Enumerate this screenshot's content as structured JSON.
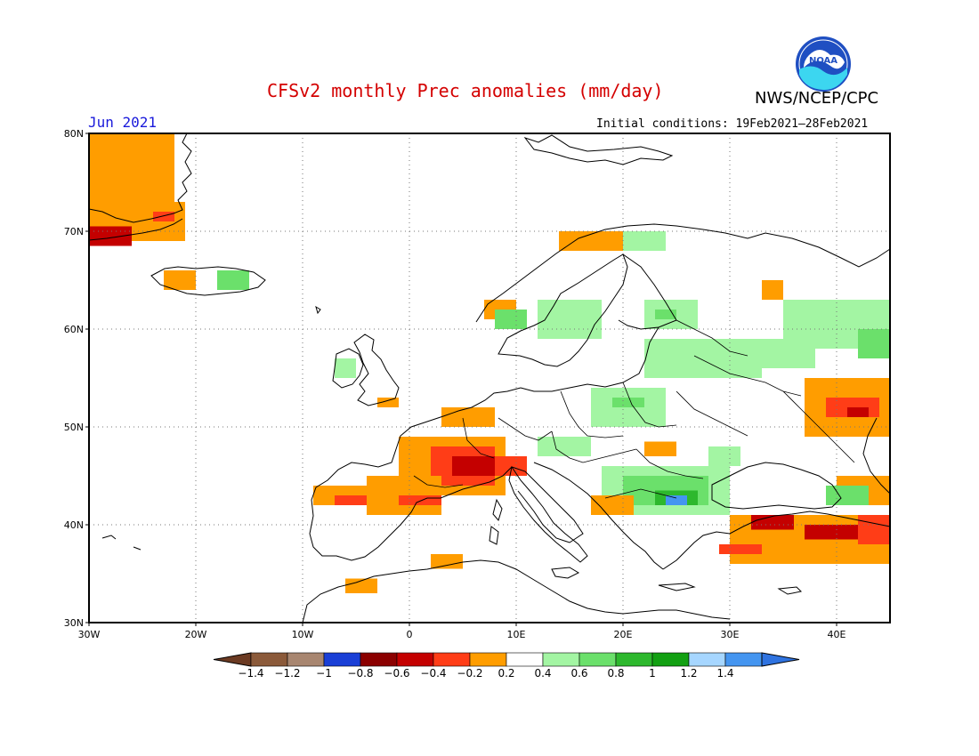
{
  "header": {
    "title": "CFSv2 monthly Prec anomalies (mm/day)",
    "organization": "NWS/NCEP/CPC",
    "month": "Jun 2021",
    "initial_conditions": "Initial conditions: 19Feb2021–28Feb2021",
    "logo_text": "NOAA"
  },
  "map": {
    "lon_range": [
      -30,
      45
    ],
    "lat_range": [
      30,
      80
    ],
    "lat_ticks": [
      {
        "value": 80,
        "label": "80N"
      },
      {
        "value": 70,
        "label": "70N"
      },
      {
        "value": 60,
        "label": "60N"
      },
      {
        "value": 50,
        "label": "50N"
      },
      {
        "value": 40,
        "label": "40N"
      },
      {
        "value": 30,
        "label": "30N"
      }
    ],
    "lon_ticks": [
      {
        "value": -30,
        "label": "30W"
      },
      {
        "value": -20,
        "label": "20W"
      },
      {
        "value": -10,
        "label": "10W"
      },
      {
        "value": 0,
        "label": "0"
      },
      {
        "value": 10,
        "label": "10E"
      },
      {
        "value": 20,
        "label": "20E"
      },
      {
        "value": 30,
        "label": "30E"
      },
      {
        "value": 40,
        "label": "40E"
      }
    ],
    "anomaly_regions": [
      {
        "lon": [
          -30,
          -22
        ],
        "lat": [
          72,
          80
        ],
        "color": "#ff9d00"
      },
      {
        "lon": [
          -30,
          -21
        ],
        "lat": [
          69,
          73
        ],
        "color": "#ff9d00"
      },
      {
        "lon": [
          -30,
          -26
        ],
        "lat": [
          68.5,
          70.5
        ],
        "color": "#c40000"
      },
      {
        "lon": [
          -24,
          -22
        ],
        "lat": [
          71,
          72
        ],
        "color": "#ff3d17"
      },
      {
        "lon": [
          -23,
          -20
        ],
        "lat": [
          64,
          66
        ],
        "color": "#ff9d00"
      },
      {
        "lon": [
          -18,
          -15
        ],
        "lat": [
          64,
          66
        ],
        "color": "#6be06b"
      },
      {
        "lon": [
          -7,
          -5
        ],
        "lat": [
          55,
          57
        ],
        "color": "#a3f5a3"
      },
      {
        "lon": [
          -3,
          -1
        ],
        "lat": [
          52,
          53
        ],
        "color": "#ff9d00"
      },
      {
        "lon": [
          3,
          8
        ],
        "lat": [
          50,
          52
        ],
        "color": "#ff9d00"
      },
      {
        "lon": [
          -1,
          9
        ],
        "lat": [
          43,
          49
        ],
        "color": "#ff9d00"
      },
      {
        "lon": [
          2,
          8
        ],
        "lat": [
          44,
          48
        ],
        "color": "#ff3d17"
      },
      {
        "lon": [
          4,
          8
        ],
        "lat": [
          45,
          47
        ],
        "color": "#c40000"
      },
      {
        "lon": [
          8,
          11
        ],
        "lat": [
          45,
          47
        ],
        "color": "#ff3d17"
      },
      {
        "lon": [
          -9,
          -2
        ],
        "lat": [
          42,
          44
        ],
        "color": "#ff9d00"
      },
      {
        "lon": [
          -7,
          -4
        ],
        "lat": [
          42,
          43
        ],
        "color": "#ff3d17"
      },
      {
        "lon": [
          -4,
          3
        ],
        "lat": [
          41,
          45
        ],
        "color": "#ff9d00"
      },
      {
        "lon": [
          -1,
          3
        ],
        "lat": [
          42,
          43
        ],
        "color": "#ff3d17"
      },
      {
        "lon": [
          -6,
          -3
        ],
        "lat": [
          33,
          34.5
        ],
        "color": "#ff9d00"
      },
      {
        "lon": [
          2,
          5
        ],
        "lat": [
          35.5,
          37
        ],
        "color": "#ff9d00"
      },
      {
        "lon": [
          7,
          10
        ],
        "lat": [
          61,
          63
        ],
        "color": "#ff9d00"
      },
      {
        "lon": [
          8,
          11
        ],
        "lat": [
          60,
          62
        ],
        "color": "#6be06b"
      },
      {
        "lon": [
          12,
          18
        ],
        "lat": [
          59,
          63
        ],
        "color": "#a3f5a3"
      },
      {
        "lon": [
          17,
          24
        ],
        "lat": [
          68,
          70
        ],
        "color": "#a3f5a3"
      },
      {
        "lon": [
          14,
          20
        ],
        "lat": [
          68,
          70
        ],
        "color": "#ff9d00"
      },
      {
        "lon": [
          22,
          27
        ],
        "lat": [
          60,
          63
        ],
        "color": "#a3f5a3"
      },
      {
        "lon": [
          23,
          25
        ],
        "lat": [
          61,
          62
        ],
        "color": "#6be06b"
      },
      {
        "lon": [
          22,
          33
        ],
        "lat": [
          55,
          59
        ],
        "color": "#a3f5a3"
      },
      {
        "lon": [
          27,
          38
        ],
        "lat": [
          56,
          59
        ],
        "color": "#a3f5a3"
      },
      {
        "lon": [
          35,
          45
        ],
        "lat": [
          58,
          63
        ],
        "color": "#a3f5a3"
      },
      {
        "lon": [
          42,
          45
        ],
        "lat": [
          57,
          60
        ],
        "color": "#6be06b"
      },
      {
        "lon": [
          33,
          35
        ],
        "lat": [
          63,
          65
        ],
        "color": "#ff9d00"
      },
      {
        "lon": [
          17,
          24
        ],
        "lat": [
          50,
          54
        ],
        "color": "#a3f5a3"
      },
      {
        "lon": [
          19,
          22
        ],
        "lat": [
          52,
          53
        ],
        "color": "#6be06b"
      },
      {
        "lon": [
          12,
          17
        ],
        "lat": [
          47,
          49
        ],
        "color": "#a3f5a3"
      },
      {
        "lon": [
          18,
          30
        ],
        "lat": [
          41,
          46
        ],
        "color": "#a3f5a3"
      },
      {
        "lon": [
          20,
          28
        ],
        "lat": [
          42,
          45
        ],
        "color": "#6be06b"
      },
      {
        "lon": [
          23,
          27
        ],
        "lat": [
          42,
          43.5
        ],
        "color": "#2db82d"
      },
      {
        "lon": [
          24,
          26
        ],
        "lat": [
          42,
          43
        ],
        "color": "#4495f0"
      },
      {
        "lon": [
          17,
          21
        ],
        "lat": [
          41,
          43
        ],
        "color": "#ff9d00"
      },
      {
        "lon": [
          22,
          25
        ],
        "lat": [
          47,
          48.5
        ],
        "color": "#ff9d00"
      },
      {
        "lon": [
          28,
          31
        ],
        "lat": [
          46,
          48
        ],
        "color": "#a3f5a3"
      },
      {
        "lon": [
          37,
          45
        ],
        "lat": [
          49,
          55
        ],
        "color": "#ff9d00"
      },
      {
        "lon": [
          39,
          44
        ],
        "lat": [
          51,
          53
        ],
        "color": "#ff3d17"
      },
      {
        "lon": [
          41,
          43
        ],
        "lat": [
          51,
          52
        ],
        "color": "#c40000"
      },
      {
        "lon": [
          40,
          45
        ],
        "lat": [
          42,
          45
        ],
        "color": "#ff9d00"
      },
      {
        "lon": [
          39,
          43
        ],
        "lat": [
          42,
          44
        ],
        "color": "#6be06b"
      },
      {
        "lon": [
          30,
          45
        ],
        "lat": [
          36,
          41
        ],
        "color": "#ff9d00"
      },
      {
        "lon": [
          32,
          36
        ],
        "lat": [
          39.5,
          41
        ],
        "color": "#c40000"
      },
      {
        "lon": [
          37,
          42
        ],
        "lat": [
          38.5,
          40
        ],
        "color": "#c40000"
      },
      {
        "lon": [
          42,
          45
        ],
        "lat": [
          38,
          41
        ],
        "color": "#ff3d17"
      },
      {
        "lon": [
          29,
          33
        ],
        "lat": [
          37,
          38
        ],
        "color": "#ff3d17"
      }
    ]
  },
  "colorbar": {
    "colors": [
      "#8b5a3a",
      "#a88670",
      "#1a3fd6",
      "#8b0000",
      "#c40000",
      "#ff3d17",
      "#ff9d00",
      "#ffffff",
      "#a3f5a3",
      "#6be06b",
      "#2db82d",
      "#12a012",
      "#a6d6ff",
      "#4495f0"
    ],
    "low_arrow_color": "#6b3a22",
    "high_arrow_color": "#2f73e0",
    "labels": [
      "−1.4",
      "−1.2",
      "−1",
      "−0.8",
      "−0.6",
      "−0.4",
      "−0.2",
      "0.2",
      "0.4",
      "0.6",
      "0.8",
      "1",
      "1.2",
      "1.4"
    ]
  }
}
